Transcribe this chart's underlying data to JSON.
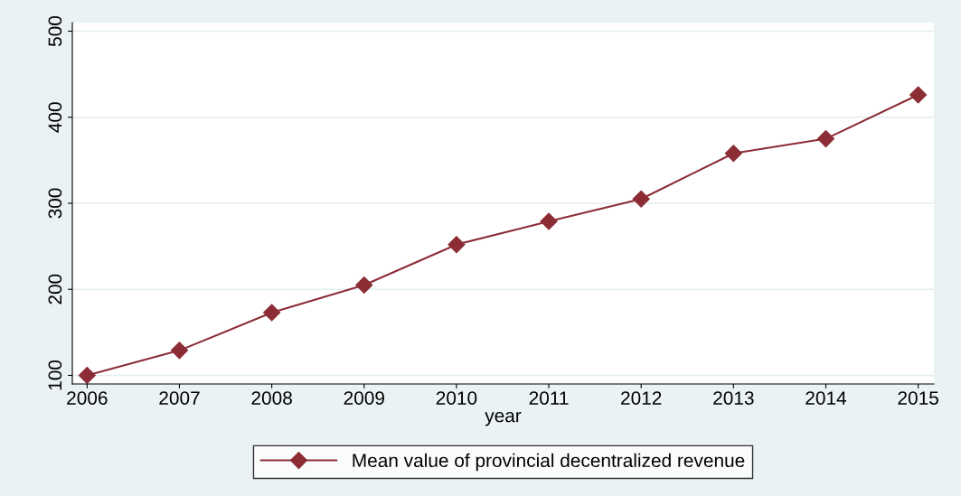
{
  "chart_data": {
    "type": "line",
    "xlabel": "year",
    "x": [
      2006,
      2007,
      2008,
      2009,
      2010,
      2011,
      2012,
      2013,
      2014,
      2015
    ],
    "series": [
      {
        "name": "Mean value of provincial decentralized revenue",
        "color": "#8c2d36",
        "values": [
          100,
          129,
          173,
          205,
          252,
          279,
          305,
          358,
          375,
          426
        ]
      }
    ],
    "xlim": [
      2005.84,
      2015.17
    ],
    "xticks": [
      2006,
      2007,
      2008,
      2009,
      2010,
      2011,
      2012,
      2013,
      2014,
      2015
    ],
    "ylim": [
      90,
      510
    ],
    "yticks": [
      100,
      200,
      300,
      400,
      500
    ],
    "grid": "y",
    "legend": "bottom",
    "marker": "diamond",
    "line_style": "solid"
  }
}
